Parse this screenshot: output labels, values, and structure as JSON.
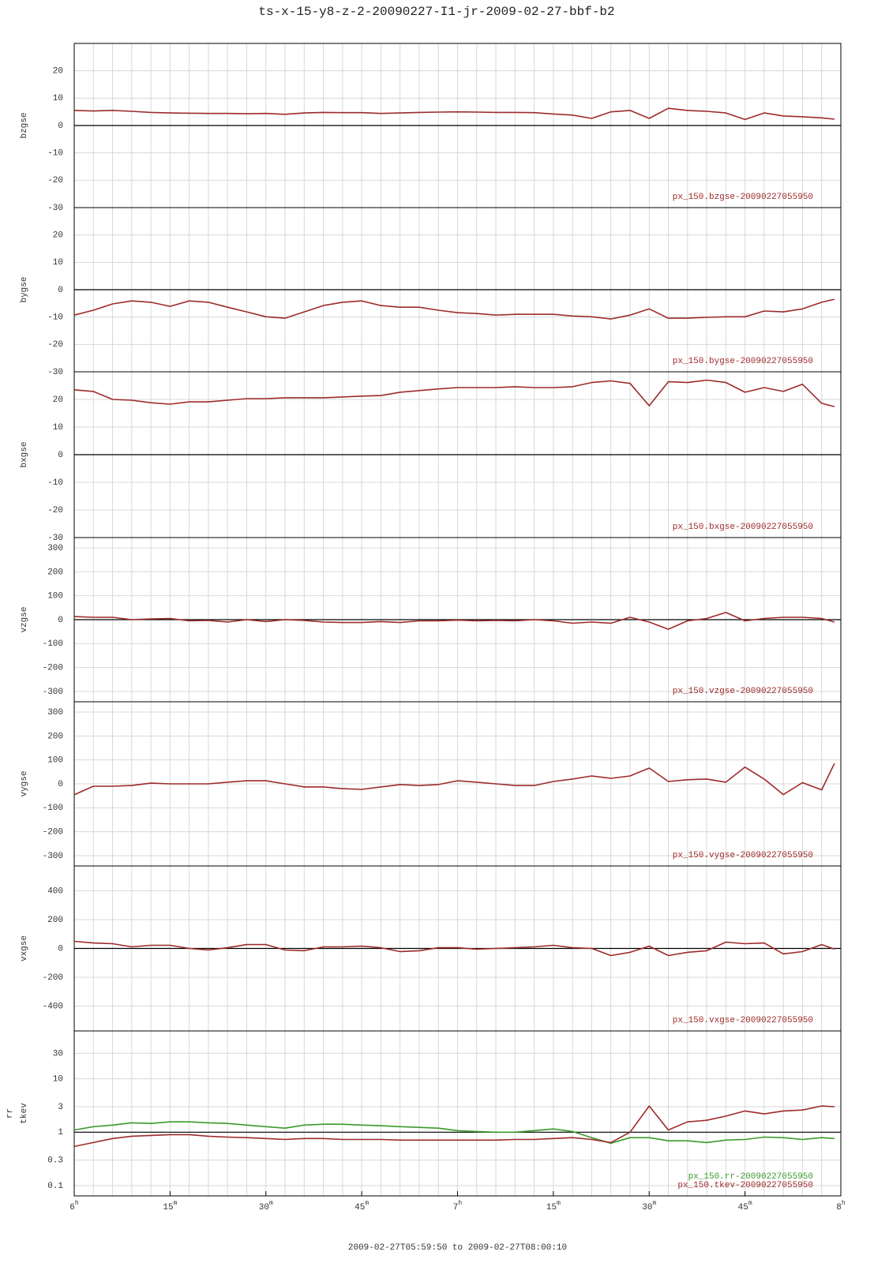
{
  "chart_data": [
    {
      "type": "line",
      "title": "ts-x-15-y8-z-2-20090227-I1-jr-2009-02-27-bbf-b2",
      "ylabel": "bzgse",
      "x": [
        0,
        3,
        6,
        9,
        12,
        15,
        18,
        21,
        24,
        27,
        30,
        33,
        36,
        39,
        42,
        45,
        48,
        51,
        54,
        57,
        60,
        63,
        66,
        69,
        72,
        75,
        78,
        81,
        84,
        87,
        90,
        93,
        96,
        99,
        102,
        105,
        108,
        111,
        114,
        117,
        119
      ],
      "xlim": [
        0,
        120
      ],
      "xgrid": [
        0,
        3,
        6,
        9,
        12,
        15,
        18,
        21,
        24,
        27,
        30,
        33,
        36,
        39,
        42,
        45,
        48,
        51,
        54,
        57,
        60,
        63,
        66,
        69,
        72,
        75,
        78,
        81,
        84,
        87,
        90,
        93,
        96,
        99,
        102,
        105,
        108,
        111,
        114,
        117,
        120
      ],
      "ylim": [
        -30,
        30
      ],
      "yticks": [
        -30,
        -20,
        -10,
        0,
        10,
        20
      ],
      "hline": 0,
      "grid": true,
      "log": false,
      "series": [
        {
          "name": "px_150.bzgse-20090227055950",
          "color": "#9e2a2a",
          "values": [
            5.5,
            5.3,
            5.5,
            5.2,
            4.8,
            4.6,
            4.5,
            4.4,
            4.4,
            4.3,
            4.4,
            4.1,
            4.6,
            4.8,
            4.7,
            4.7,
            4.4,
            4.6,
            4.8,
            4.9,
            5,
            4.9,
            4.8,
            4.8,
            4.7,
            4.2,
            3.8,
            2.6,
            5,
            5.5,
            2.6,
            6.3,
            5.5,
            5.2,
            4.6,
            2.2,
            4.6,
            3.5,
            3.2,
            2.8,
            2.3
          ]
        }
      ]
    },
    {
      "type": "line",
      "ylabel": "bygse",
      "x": [
        0,
        3,
        6,
        9,
        12,
        15,
        18,
        21,
        24,
        27,
        30,
        33,
        36,
        39,
        42,
        45,
        48,
        51,
        54,
        57,
        60,
        63,
        66,
        69,
        72,
        75,
        78,
        81,
        84,
        87,
        90,
        93,
        96,
        99,
        102,
        105,
        108,
        111,
        114,
        117,
        119
      ],
      "xlim": [
        0,
        120
      ],
      "xgrid": [
        0,
        3,
        6,
        9,
        12,
        15,
        18,
        21,
        24,
        27,
        30,
        33,
        36,
        39,
        42,
        45,
        48,
        51,
        54,
        57,
        60,
        63,
        66,
        69,
        72,
        75,
        78,
        81,
        84,
        87,
        90,
        93,
        96,
        99,
        102,
        105,
        108,
        111,
        114,
        117,
        120
      ],
      "ylim": [
        -30,
        30
      ],
      "yticks": [
        -30,
        -20,
        -10,
        0,
        10,
        20
      ],
      "hline": 0,
      "grid": true,
      "log": false,
      "series": [
        {
          "name": "px_150.bygse-20090227055950",
          "color": "#9e2a2a",
          "values": [
            -9.3,
            -7.5,
            -5.2,
            -4.1,
            -4.6,
            -6.1,
            -4.1,
            -4.6,
            -6.4,
            -8.1,
            -9.9,
            -10.4,
            -8.1,
            -5.8,
            -4.6,
            -4.1,
            -5.8,
            -6.4,
            -6.4,
            -7.5,
            -8.4,
            -8.7,
            -9.3,
            -9,
            -9,
            -9,
            -9.6,
            -9.9,
            -10.7,
            -9.3,
            -7,
            -10.4,
            -10.4,
            -10.1,
            -9.9,
            -9.9,
            -7.8,
            -8.1,
            -7,
            -4.6,
            -3.5
          ]
        }
      ]
    },
    {
      "type": "line",
      "ylabel": "bxgse",
      "x": [
        0,
        3,
        6,
        9,
        12,
        15,
        18,
        21,
        24,
        27,
        30,
        33,
        36,
        39,
        42,
        45,
        48,
        51,
        54,
        57,
        60,
        63,
        66,
        69,
        72,
        75,
        78,
        81,
        84,
        87,
        90,
        93,
        96,
        99,
        102,
        105,
        108,
        111,
        114,
        117,
        119
      ],
      "xlim": [
        0,
        120
      ],
      "xgrid": [
        0,
        3,
        6,
        9,
        12,
        15,
        18,
        21,
        24,
        27,
        30,
        33,
        36,
        39,
        42,
        45,
        48,
        51,
        54,
        57,
        60,
        63,
        66,
        69,
        72,
        75,
        78,
        81,
        84,
        87,
        90,
        93,
        96,
        99,
        102,
        105,
        108,
        111,
        114,
        117,
        120
      ],
      "ylim": [
        -30,
        30
      ],
      "yticks": [
        -30,
        -20,
        -10,
        0,
        10,
        20
      ],
      "hline": 0,
      "grid": true,
      "log": false,
      "series": [
        {
          "name": "px_150.bxgse-20090227055950",
          "color": "#9e2a2a",
          "values": [
            23.5,
            22.9,
            20,
            19.7,
            18.8,
            18.3,
            19.1,
            19.1,
            19.7,
            20.3,
            20.3,
            20.6,
            20.6,
            20.6,
            20.9,
            21.2,
            21.4,
            22.6,
            23.2,
            23.8,
            24.3,
            24.3,
            24.3,
            24.6,
            24.3,
            24.3,
            24.6,
            26.1,
            26.7,
            25.8,
            17.7,
            26.4,
            26.1,
            27,
            26.1,
            22.6,
            24.3,
            22.9,
            25.5,
            18.6,
            17.4
          ]
        }
      ]
    },
    {
      "type": "line",
      "ylabel": "vzgse",
      "x": [
        0,
        3,
        6,
        9,
        12,
        15,
        18,
        21,
        24,
        27,
        30,
        33,
        36,
        39,
        42,
        45,
        48,
        51,
        54,
        57,
        60,
        63,
        66,
        69,
        72,
        75,
        78,
        81,
        84,
        87,
        90,
        93,
        96,
        99,
        102,
        105,
        108,
        111,
        114,
        117,
        119
      ],
      "xlim": [
        0,
        120
      ],
      "xgrid": [
        0,
        3,
        6,
        9,
        12,
        15,
        18,
        21,
        24,
        27,
        30,
        33,
        36,
        39,
        42,
        45,
        48,
        51,
        54,
        57,
        60,
        63,
        66,
        69,
        72,
        75,
        78,
        81,
        84,
        87,
        90,
        93,
        96,
        99,
        102,
        105,
        108,
        111,
        114,
        117,
        120
      ],
      "ylim": [
        -343,
        343
      ],
      "yticks": [
        -300,
        -200,
        -100,
        0,
        100,
        200,
        300
      ],
      "hline": 0,
      "grid": true,
      "log": false,
      "series": [
        {
          "name": "px_150.vzgse-20090227055950",
          "color": "#9e2a2a",
          "values": [
            13,
            10,
            10,
            0,
            3,
            5,
            -5,
            -3,
            -10,
            0,
            -8,
            0,
            -3,
            -10,
            -12,
            -12,
            -8,
            -12,
            -5,
            -5,
            -2,
            -5,
            -3,
            -5,
            0,
            -5,
            -15,
            -10,
            -15,
            10,
            -10,
            -40,
            -5,
            5,
            30,
            -5,
            5,
            10,
            10,
            5,
            -10
          ]
        }
      ]
    },
    {
      "type": "line",
      "ylabel": "vygse",
      "x": [
        0,
        3,
        6,
        9,
        12,
        15,
        18,
        21,
        24,
        27,
        30,
        33,
        36,
        39,
        42,
        45,
        48,
        51,
        54,
        57,
        60,
        63,
        66,
        69,
        72,
        75,
        78,
        81,
        84,
        87,
        90,
        93,
        96,
        99,
        102,
        105,
        108,
        111,
        114,
        117,
        119
      ],
      "xlim": [
        0,
        120
      ],
      "xgrid": [
        0,
        3,
        6,
        9,
        12,
        15,
        18,
        21,
        24,
        27,
        30,
        33,
        36,
        39,
        42,
        45,
        48,
        51,
        54,
        57,
        60,
        63,
        66,
        69,
        72,
        75,
        78,
        81,
        84,
        87,
        90,
        93,
        96,
        99,
        102,
        105,
        108,
        111,
        114,
        117,
        120
      ],
      "ylim": [
        -343,
        343
      ],
      "yticks": [
        -300,
        -200,
        -100,
        0,
        100,
        200,
        300
      ],
      "grid": true,
      "log": false,
      "series": [
        {
          "name": "px_150.vygse-20090227055950",
          "color": "#9e2a2a",
          "values": [
            -46,
            -10,
            -10,
            -7,
            3,
            0,
            0,
            0,
            7,
            13,
            13,
            0,
            -13,
            -13,
            -20,
            -23,
            -13,
            -3,
            -7,
            -3,
            13,
            7,
            0,
            -7,
            -7,
            10,
            20,
            33,
            23,
            33,
            66,
            10,
            17,
            20,
            7,
            70,
            20,
            -45,
            5,
            -25,
            85
          ]
        }
      ]
    },
    {
      "type": "line",
      "ylabel": "vxgse",
      "x": [
        0,
        3,
        6,
        9,
        12,
        15,
        18,
        21,
        24,
        27,
        30,
        33,
        36,
        39,
        42,
        45,
        48,
        51,
        54,
        57,
        60,
        63,
        66,
        69,
        72,
        75,
        78,
        81,
        84,
        87,
        90,
        93,
        96,
        99,
        102,
        105,
        108,
        111,
        114,
        117,
        119
      ],
      "xlim": [
        0,
        120
      ],
      "xgrid": [
        0,
        3,
        6,
        9,
        12,
        15,
        18,
        21,
        24,
        27,
        30,
        33,
        36,
        39,
        42,
        45,
        48,
        51,
        54,
        57,
        60,
        63,
        66,
        69,
        72,
        75,
        78,
        81,
        84,
        87,
        90,
        93,
        96,
        99,
        102,
        105,
        108,
        111,
        114,
        117,
        120
      ],
      "ylim": [
        -572,
        572
      ],
      "yticks": [
        -400,
        -200,
        0,
        200,
        400
      ],
      "hline": 0,
      "grid": true,
      "log": false,
      "series": [
        {
          "name": "px_150.vxgse-20090227055950",
          "color": "#9e2a2a",
          "values": [
            49,
            38,
            33,
            11,
            22,
            22,
            0,
            -11,
            5,
            27,
            27,
            -11,
            -16,
            11,
            11,
            16,
            5,
            -22,
            -16,
            5,
            5,
            -5,
            0,
            5,
            11,
            22,
            5,
            0,
            -49,
            -27,
            16,
            -49,
            -27,
            -16,
            44,
            33,
            38,
            -38,
            -22,
            27,
            -5
          ]
        }
      ]
    },
    {
      "type": "line",
      "ylabel": [
        "rr",
        "tkev"
      ],
      "x": [
        0,
        3,
        6,
        9,
        12,
        15,
        18,
        21,
        24,
        27,
        30,
        33,
        36,
        39,
        42,
        45,
        48,
        51,
        54,
        57,
        60,
        63,
        66,
        69,
        72,
        75,
        78,
        81,
        84,
        87,
        90,
        93,
        96,
        99,
        102,
        105,
        108,
        111,
        114,
        117,
        119
      ],
      "xlim": [
        0,
        120
      ],
      "xgrid": [
        0,
        3,
        6,
        9,
        12,
        15,
        18,
        21,
        24,
        27,
        30,
        33,
        36,
        39,
        42,
        45,
        48,
        51,
        54,
        57,
        60,
        63,
        66,
        69,
        72,
        75,
        78,
        81,
        84,
        87,
        90,
        93,
        96,
        99,
        102,
        105,
        108,
        111,
        114,
        117,
        120
      ],
      "xticks": [
        {
          "value": 0,
          "label": "6h"
        },
        {
          "value": 15,
          "label": "15m"
        },
        {
          "value": 30,
          "label": "30m"
        },
        {
          "value": 45,
          "label": "45m"
        },
        {
          "value": 60,
          "label": "7h"
        },
        {
          "value": 75,
          "label": "15m"
        },
        {
          "value": 90,
          "label": "30m"
        },
        {
          "value": 105,
          "label": "45m"
        },
        {
          "value": 120,
          "label": "8h"
        }
      ],
      "xlabel": "2009-02-27T05:59:50 to 2009-02-27T08:00:10",
      "ylim": [
        0.064,
        79
      ],
      "yticks": [
        0.1,
        0.3,
        1,
        3,
        10,
        30
      ],
      "hline": 1,
      "grid": true,
      "log": true,
      "series": [
        {
          "name": "px_150.rr-20090227055950",
          "color": "#3a9a2a",
          "values": [
            1.1,
            1.27,
            1.36,
            1.5,
            1.46,
            1.56,
            1.56,
            1.5,
            1.46,
            1.36,
            1.27,
            1.19,
            1.36,
            1.41,
            1.41,
            1.36,
            1.32,
            1.27,
            1.23,
            1.19,
            1.07,
            1.03,
            1,
            1,
            1.07,
            1.15,
            1.03,
            0.79,
            0.62,
            0.79,
            0.79,
            0.69,
            0.69,
            0.64,
            0.71,
            0.73,
            0.81,
            0.79,
            0.73,
            0.79,
            0.76
          ]
        },
        {
          "name": "px_150.tkev-20090227055950",
          "color": "#9e2a2a",
          "values": [
            0.54,
            0.64,
            0.76,
            0.84,
            0.87,
            0.9,
            0.9,
            0.84,
            0.81,
            0.79,
            0.76,
            0.73,
            0.76,
            0.76,
            0.73,
            0.73,
            0.73,
            0.71,
            0.71,
            0.71,
            0.71,
            0.71,
            0.71,
            0.73,
            0.73,
            0.76,
            0.79,
            0.73,
            0.64,
            1,
            3.1,
            1.1,
            1.56,
            1.67,
            2,
            2.5,
            2.2,
            2.5,
            2.6,
            3.1,
            3
          ]
        }
      ]
    }
  ]
}
